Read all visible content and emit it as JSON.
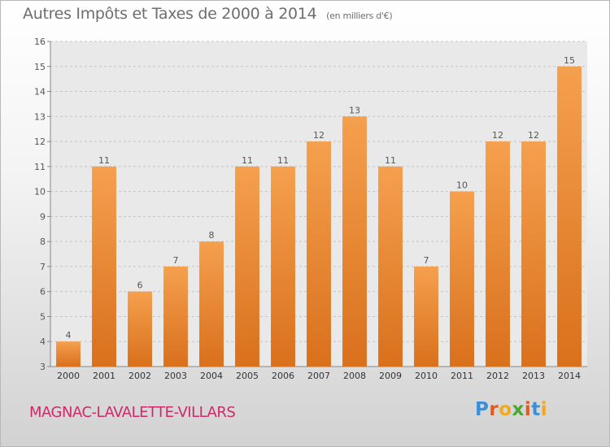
{
  "chart_data": {
    "type": "bar",
    "title": "Autres Impôts et Taxes de 2000 à 2014",
    "subtitle": "(en milliers d'€)",
    "categories": [
      "2000",
      "2001",
      "2002",
      "2003",
      "2004",
      "2005",
      "2006",
      "2007",
      "2008",
      "2009",
      "2010",
      "2011",
      "2012",
      "2013",
      "2014"
    ],
    "values": [
      4,
      11,
      6,
      7,
      8,
      11,
      11,
      12,
      13,
      11,
      7,
      10,
      12,
      12,
      15
    ],
    "ylim": [
      3,
      16
    ],
    "yticks": [
      3,
      4,
      5,
      6,
      7,
      8,
      9,
      10,
      11,
      12,
      13,
      14,
      15,
      16
    ],
    "grid": true,
    "bar_color": "#f5a04e",
    "bar_color_dark": "#d9701c"
  },
  "footer": {
    "commune": "MAGNAC-LAVALETTE-VILLARS",
    "commune_color": "#cc2a6a",
    "logo_letters": [
      "P",
      "r",
      "o",
      "x",
      "i",
      "t",
      "i"
    ],
    "logo_colors": [
      "#3a8fd6",
      "#e25a1c",
      "#f2a81d",
      "#4aa832",
      "#e25a1c",
      "#3a8fd6",
      "#f2a81d"
    ]
  }
}
